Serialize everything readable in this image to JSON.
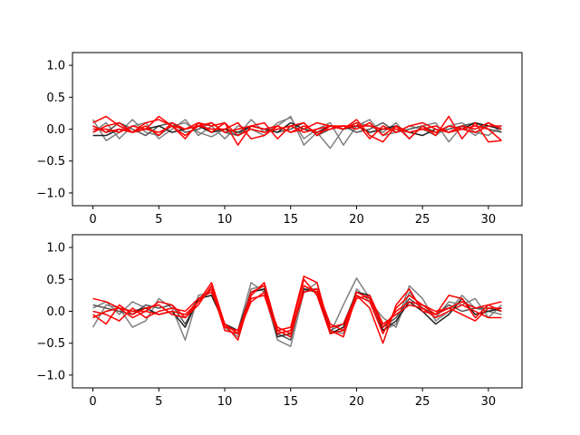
{
  "chart_data": [
    {
      "type": "line",
      "title": "",
      "xlabel": "",
      "ylabel": "",
      "xlim": [
        -1.55,
        32.55
      ],
      "ylim": [
        -1.2,
        1.2
      ],
      "xticks": [
        0,
        5,
        10,
        15,
        20,
        25,
        30
      ],
      "yticks": [
        -1.0,
        -0.5,
        0.0,
        0.5,
        1.0
      ],
      "xtick_labels": [
        "0",
        "5",
        "10",
        "15",
        "20",
        "25",
        "30"
      ],
      "ytick_labels": [
        "−1.0",
        "−0.5",
        "0.0",
        "0.5",
        "1.0"
      ],
      "grid": false,
      "x": [
        0,
        1,
        2,
        3,
        4,
        5,
        6,
        7,
        8,
        9,
        10,
        11,
        12,
        13,
        14,
        15,
        16,
        17,
        18,
        19,
        20,
        21,
        22,
        23,
        24,
        25,
        26,
        27,
        28,
        29,
        30,
        31
      ],
      "series": [
        {
          "color": "#808080",
          "values": [
            0.15,
            -0.18,
            -0.05,
            0.15,
            -0.05,
            -0.1,
            0.05,
            0.1,
            -0.05,
            -0.12,
            0.0,
            -0.1,
            0.15,
            -0.05,
            0.05,
            0.2,
            -0.25,
            -0.05,
            -0.3,
            0.0,
            0.1,
            0.05,
            -0.05,
            0.1,
            -0.15,
            0.05,
            0.1,
            -0.2,
            0.05,
            -0.1,
            0.1,
            -0.05
          ]
        },
        {
          "color": "#808080",
          "values": [
            -0.05,
            0.1,
            -0.15,
            0.05,
            0.1,
            -0.15,
            0.0,
            0.15,
            -0.1,
            0.05,
            -0.15,
            0.05,
            0.0,
            -0.1,
            0.1,
            0.18,
            -0.15,
            0.0,
            0.1,
            -0.25,
            0.05,
            0.15,
            -0.1,
            -0.05,
            0.05,
            0.0,
            -0.1,
            0.05,
            0.1,
            -0.05,
            -0.1,
            0.05
          ]
        },
        {
          "color": "#555555",
          "values": [
            0.05,
            -0.05,
            0.1,
            0.0,
            -0.1,
            0.05,
            0.1,
            -0.05,
            0.0,
            0.1,
            -0.05,
            -0.1,
            0.05,
            0.0,
            -0.05,
            0.0,
            0.1,
            -0.1,
            0.0,
            0.05,
            -0.05,
            0.0,
            0.1,
            -0.05,
            0.0,
            0.05,
            -0.05,
            0.0,
            0.05,
            0.1,
            0.0,
            -0.05
          ]
        },
        {
          "color": "#222222",
          "values": [
            -0.1,
            -0.1,
            0.0,
            -0.05,
            0.0,
            0.05,
            -0.05,
            0.0,
            0.05,
            -0.05,
            0.0,
            -0.05,
            0.05,
            0.0,
            -0.05,
            0.1,
            0.0,
            -0.05,
            0.05,
            0.0,
            0.05,
            -0.05,
            0.0,
            0.05,
            -0.05,
            -0.1,
            0.0,
            -0.05,
            0.0,
            0.1,
            0.05,
            0.0
          ]
        },
        {
          "color": "#ff0000",
          "values": [
            0.1,
            0.2,
            0.05,
            -0.05,
            0.1,
            0.15,
            0.05,
            -0.15,
            0.1,
            0.05,
            0.1,
            -0.25,
            0.05,
            0.1,
            -0.15,
            0.05,
            0.1,
            -0.1,
            0.05,
            0.0,
            0.15,
            -0.1,
            -0.2,
            0.05,
            -0.15,
            0.05,
            -0.1,
            0.2,
            -0.15,
            0.1,
            -0.2,
            -0.18
          ]
        },
        {
          "color": "#ff0000",
          "values": [
            -0.05,
            0.05,
            0.1,
            -0.05,
            0.0,
            0.2,
            0.05,
            0.0,
            0.05,
            0.0,
            0.0,
            0.1,
            -0.15,
            -0.1,
            0.05,
            -0.05,
            0.0,
            0.1,
            0.05,
            0.05,
            0.0,
            0.1,
            -0.1,
            0.05,
            -0.05,
            0.0,
            0.05,
            -0.05,
            0.0,
            0.05,
            0.0,
            -0.18
          ]
        },
        {
          "color": "#ff0000",
          "values": [
            0.05,
            -0.05,
            0.0,
            -0.05,
            0.05,
            -0.1,
            0.1,
            0.0,
            0.1,
            -0.05,
            0.1,
            -0.1,
            0.0,
            -0.05,
            0.0,
            0.05,
            -0.05,
            0.0,
            0.05,
            0.0,
            0.1,
            -0.15,
            0.05,
            -0.05,
            0.05,
            0.1,
            0.0,
            -0.05,
            0.05,
            0.0,
            0.1,
            0.0
          ]
        },
        {
          "color": "#ff0000",
          "values": [
            0.0,
            0.0,
            -0.05,
            0.05,
            0.0,
            -0.05,
            0.05,
            -0.1,
            0.05,
            0.1,
            -0.05,
            0.0,
            0.05,
            0.0,
            0.05,
            -0.05,
            0.05,
            -0.05,
            0.0,
            0.05,
            0.05,
            0.05,
            0.0,
            0.0,
            -0.05,
            0.0,
            -0.05,
            0.05,
            0.0,
            -0.05,
            0.05,
            0.05
          ]
        }
      ]
    },
    {
      "type": "line",
      "title": "",
      "xlabel": "",
      "ylabel": "",
      "xlim": [
        -1.55,
        32.55
      ],
      "ylim": [
        -1.2,
        1.2
      ],
      "xticks": [
        0,
        5,
        10,
        15,
        20,
        25,
        30
      ],
      "yticks": [
        -1.0,
        -0.5,
        0.0,
        0.5,
        1.0
      ],
      "xtick_labels": [
        "0",
        "5",
        "10",
        "15",
        "20",
        "25",
        "30"
      ],
      "ytick_labels": [
        "−1.0",
        "−0.5",
        "0.0",
        "0.5",
        "1.0"
      ],
      "grid": false,
      "x": [
        0,
        1,
        2,
        3,
        4,
        5,
        6,
        7,
        8,
        9,
        10,
        11,
        12,
        13,
        14,
        15,
        16,
        17,
        18,
        19,
        20,
        21,
        22,
        23,
        24,
        25,
        26,
        27,
        28,
        29,
        30,
        31
      ],
      "series": [
        {
          "color": "#808080",
          "values": [
            -0.25,
            0.1,
            0.05,
            -0.25,
            -0.15,
            0.2,
            0.05,
            -0.45,
            0.25,
            0.3,
            -0.25,
            -0.3,
            0.45,
            0.3,
            -0.45,
            -0.55,
            0.3,
            0.45,
            -0.35,
            0.1,
            0.52,
            0.2,
            -0.3,
            -0.2,
            0.4,
            0.2,
            -0.15,
            0.0,
            0.25,
            0.05,
            0.0,
            -0.05
          ]
        },
        {
          "color": "#808080",
          "values": [
            0.05,
            0.15,
            -0.05,
            0.15,
            0.05,
            0.1,
            -0.05,
            -0.1,
            0.2,
            0.35,
            -0.25,
            -0.4,
            0.35,
            0.4,
            -0.3,
            -0.4,
            0.35,
            0.35,
            -0.3,
            -0.35,
            0.35,
            0.15,
            -0.1,
            -0.25,
            0.3,
            0.05,
            -0.1,
            0.15,
            0.1,
            0.2,
            -0.1,
            0.1
          ]
        },
        {
          "color": "#555555",
          "values": [
            0.1,
            0.05,
            0.0,
            -0.05,
            0.1,
            0.05,
            0.1,
            -0.2,
            0.2,
            0.25,
            -0.2,
            -0.35,
            0.3,
            0.35,
            -0.35,
            -0.45,
            0.4,
            0.3,
            -0.3,
            -0.2,
            0.3,
            0.2,
            -0.25,
            -0.1,
            0.2,
            0.05,
            -0.05,
            0.1,
            0.0,
            0.05,
            0.05,
            0.0
          ]
        },
        {
          "color": "#222222",
          "values": [
            -0.1,
            0.0,
            0.05,
            0.0,
            0.05,
            -0.05,
            0.0,
            -0.25,
            0.2,
            0.25,
            -0.2,
            -0.3,
            0.3,
            0.35,
            -0.4,
            -0.35,
            0.35,
            0.3,
            -0.35,
            -0.25,
            0.3,
            0.25,
            -0.3,
            -0.15,
            0.15,
            0.0,
            -0.2,
            -0.05,
            0.2,
            -0.05,
            0.0,
            0.05
          ]
        },
        {
          "color": "#ff0000",
          "values": [
            0.2,
            0.15,
            0.05,
            -0.1,
            0.0,
            0.15,
            0.1,
            -0.1,
            0.15,
            0.45,
            -0.2,
            -0.45,
            0.25,
            0.45,
            -0.3,
            -0.25,
            0.55,
            0.45,
            -0.3,
            -0.4,
            0.25,
            0.05,
            -0.5,
            0.1,
            0.35,
            0.0,
            -0.05,
            0.25,
            0.2,
            -0.1,
            0.1,
            0.15
          ]
        },
        {
          "color": "#ff0000",
          "values": [
            -0.05,
            -0.2,
            0.1,
            -0.05,
            0.05,
            0.1,
            -0.05,
            -0.1,
            0.1,
            0.4,
            -0.25,
            -0.3,
            0.2,
            0.25,
            -0.35,
            -0.3,
            0.5,
            0.25,
            -0.35,
            -0.3,
            0.3,
            0.2,
            -0.25,
            0.0,
            0.15,
            0.1,
            -0.05,
            0.05,
            -0.05,
            -0.15,
            0.05,
            0.05
          ]
        },
        {
          "color": "#ff0000",
          "values": [
            0.0,
            -0.05,
            -0.15,
            0.05,
            -0.1,
            0.0,
            0.05,
            0.0,
            0.2,
            0.3,
            -0.2,
            -0.35,
            0.15,
            0.3,
            -0.25,
            -0.35,
            0.3,
            0.35,
            -0.2,
            -0.3,
            0.2,
            0.25,
            -0.2,
            -0.05,
            0.1,
            0.05,
            -0.1,
            0.0,
            0.1,
            0.0,
            -0.1,
            -0.1
          ]
        },
        {
          "color": "#ff0000",
          "values": [
            -0.1,
            0.0,
            0.05,
            0.0,
            0.0,
            -0.05,
            0.0,
            -0.05,
            0.15,
            0.35,
            -0.3,
            -0.35,
            0.3,
            0.4,
            -0.3,
            -0.4,
            0.4,
            0.3,
            -0.25,
            -0.2,
            0.25,
            0.15,
            -0.35,
            0.05,
            0.25,
            0.1,
            0.0,
            0.05,
            0.15,
            0.05,
            0.1,
            0.0
          ]
        }
      ]
    }
  ]
}
